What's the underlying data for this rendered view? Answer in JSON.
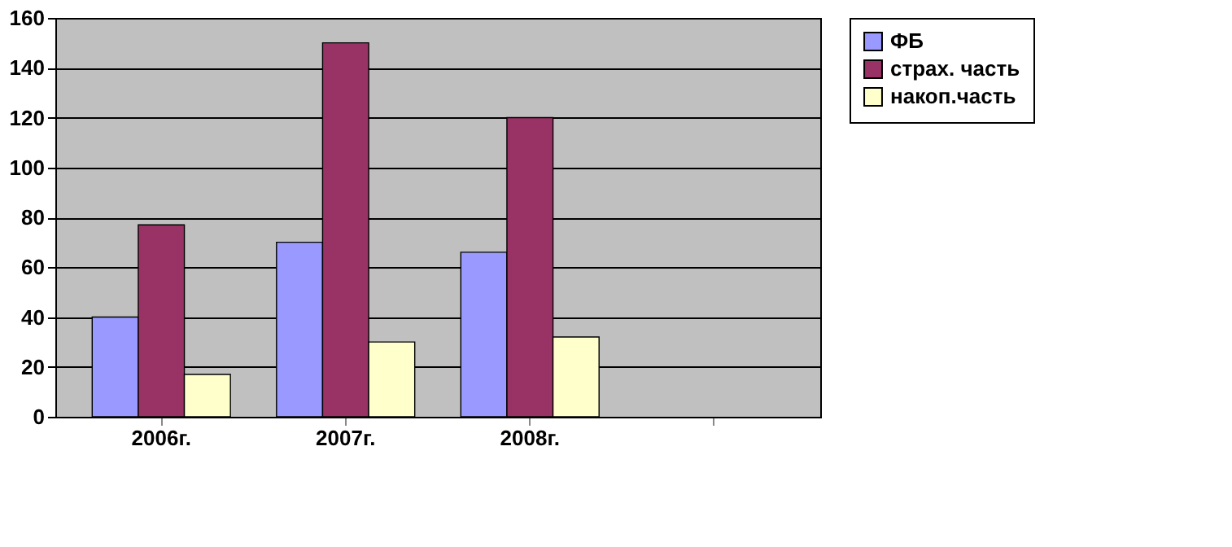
{
  "chart_data": {
    "type": "bar",
    "categories": [
      "2006г.",
      "2007г.",
      "2008г.",
      null
    ],
    "series": [
      {
        "name": "ФБ",
        "color": "#9999ff",
        "values": [
          40,
          70,
          66,
          null
        ]
      },
      {
        "name": "страх. часть",
        "color": "#993366",
        "values": [
          77,
          150,
          120,
          null
        ]
      },
      {
        "name": "накоп.часть",
        "color": "#ffffcc",
        "values": [
          17,
          30,
          32,
          null
        ]
      }
    ],
    "ylim": [
      0,
      160
    ],
    "yticks": [
      0,
      20,
      40,
      60,
      80,
      100,
      120,
      140,
      160
    ],
    "grid": "y",
    "legend": "right"
  }
}
